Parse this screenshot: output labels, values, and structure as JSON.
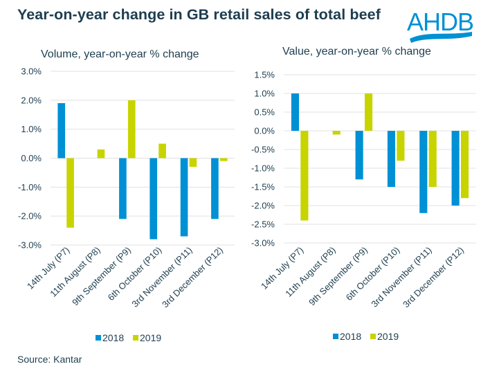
{
  "header": {
    "title": "Year-on-year change in GB retail sales of total beef",
    "logo_text": "AHDB",
    "logo_color": "#0090d4"
  },
  "footer": {
    "source": "Source: Kantar"
  },
  "colors": {
    "2018": "#0090d4",
    "2019": "#c8d400",
    "grid": "#e0e0e0",
    "text": "#1d3d4f"
  },
  "chart_data": [
    {
      "type": "bar",
      "title": "Volume, year-on-year % change",
      "xlabel": "",
      "ylabel": "",
      "categories": [
        "14th July (P7)",
        "11th August (P8)",
        "9th September (P9)",
        "6th October (P10)",
        "3rd November (P11)",
        "3rd December (P12)"
      ],
      "series": [
        {
          "name": "2018",
          "values": [
            1.9,
            0.0,
            -2.1,
            -2.8,
            -2.7,
            -2.1
          ]
        },
        {
          "name": "2019",
          "values": [
            -2.4,
            0.3,
            2.0,
            0.5,
            -0.3,
            -0.1
          ]
        }
      ],
      "ylim": [
        -3.0,
        3.0
      ],
      "yticks": [
        3.0,
        2.0,
        1.0,
        0.0,
        -1.0,
        -2.0,
        -3.0
      ],
      "ytick_labels": [
        "3.0%",
        "2.0%",
        "1.0%",
        "0.0%",
        "-1.0%",
        "-2.0%",
        "-3.0%"
      ],
      "grid": true,
      "legend": "bottom-center"
    },
    {
      "type": "bar",
      "title": "Value, year-on-year % change",
      "xlabel": "",
      "ylabel": "",
      "categories": [
        "14th July (P7)",
        "11th August (P8)",
        "9th September (P9)",
        "6th October (P10)",
        "3rd November (P11)",
        "3rd December (P12)"
      ],
      "series": [
        {
          "name": "2018",
          "values": [
            1.0,
            0.0,
            -1.3,
            -1.5,
            -2.2,
            -2.0
          ]
        },
        {
          "name": "2019",
          "values": [
            -2.4,
            -0.1,
            1.0,
            -0.8,
            -1.5,
            -1.8
          ]
        }
      ],
      "ylim": [
        -3.0,
        1.5
      ],
      "yticks": [
        1.5,
        1.0,
        0.5,
        0.0,
        -0.5,
        -1.0,
        -1.5,
        -2.0,
        -2.5,
        -3.0
      ],
      "ytick_labels": [
        "1.5%",
        "1.0%",
        "0.5%",
        "0.0%",
        "-0.5%",
        "-1.0%",
        "-1.5%",
        "-2.0%",
        "-2.5%",
        "-3.0%"
      ],
      "grid": true,
      "legend": "bottom-center"
    }
  ]
}
